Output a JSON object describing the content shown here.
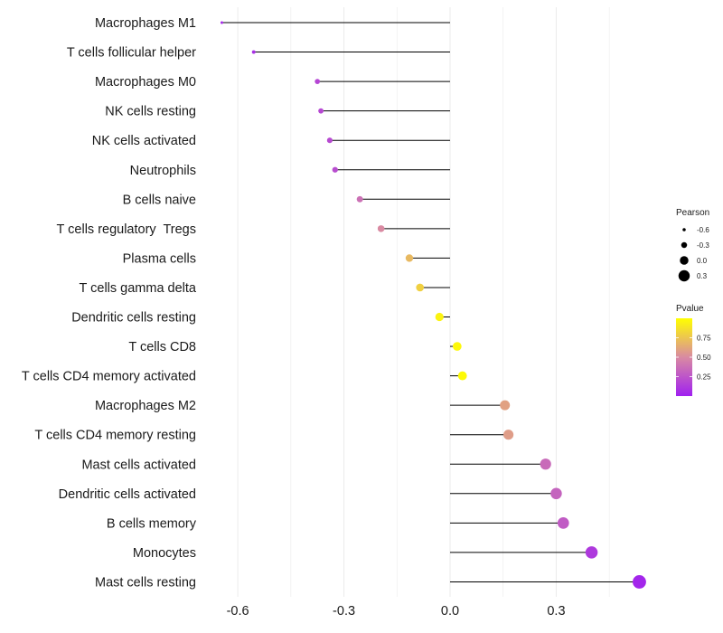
{
  "chart_data": {
    "type": "lollipop",
    "categories": [
      "Macrophages M1",
      "T cells follicular helper",
      "Macrophages M0",
      "NK cells resting",
      "NK cells activated",
      "Neutrophils",
      "B cells naive",
      "T cells regulatory  Tregs",
      "Plasma cells",
      "T cells gamma delta",
      "Dendritic cells resting",
      "T cells CD8",
      "T cells CD4 memory activated",
      "Macrophages M2",
      "T cells CD4 memory resting",
      "Mast cells activated",
      "Dendritic cells activated",
      "B cells memory",
      "Monocytes",
      "Mast cells resting"
    ],
    "pearson": [
      -0.645,
      -0.555,
      -0.375,
      -0.365,
      -0.34,
      -0.325,
      -0.255,
      -0.195,
      -0.115,
      -0.085,
      -0.03,
      0.02,
      0.035,
      0.155,
      0.165,
      0.27,
      0.3,
      0.32,
      0.4,
      0.535
    ],
    "pvalue": [
      0.05,
      0.07,
      0.18,
      0.19,
      0.2,
      0.21,
      0.38,
      0.5,
      0.7,
      0.8,
      0.95,
      0.97,
      0.98,
      0.6,
      0.58,
      0.35,
      0.32,
      0.28,
      0.12,
      0.03
    ],
    "xlim": [
      -0.67,
      0.57
    ],
    "xticks": [
      -0.6,
      -0.3,
      0.0,
      0.3
    ],
    "xtick_labels": [
      "-0.6",
      "-0.3",
      "0.0",
      "0.3"
    ],
    "xlabel": "",
    "ylabel": "",
    "legend": {
      "size_title": "Pearson",
      "size_values": [
        -0.6,
        -0.3,
        0.0,
        0.3
      ],
      "size_labels": [
        "-0.6",
        "-0.3",
        "0.0",
        "0.3"
      ],
      "color_title": "Pvalue",
      "color_ticks": [
        0.25,
        0.5,
        0.75
      ],
      "color_labels": [
        "0.25",
        "0.50",
        "0.75"
      ],
      "color_range": [
        0.0,
        1.0
      ],
      "placement": "right"
    },
    "colors": {
      "low": "#a020f0",
      "mid": "#d98aa2",
      "high": "#ffff00",
      "stem": "#000000",
      "grid": "#ebebeb"
    }
  }
}
